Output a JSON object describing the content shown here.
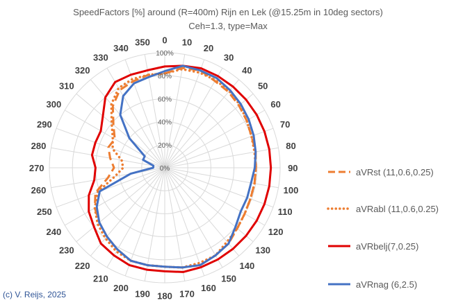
{
  "chart_data": {
    "type": "radar",
    "title": "SpeedFactors [%] around (R=400m) Rijn en Lek (@15.25m in 10deg sectors)",
    "subtitle": "Ceh=1.3, type=Max",
    "directions": [
      "0",
      "10",
      "20",
      "30",
      "40",
      "50",
      "60",
      "70",
      "80",
      "90",
      "100",
      "110",
      "120",
      "130",
      "140",
      "150",
      "160",
      "170",
      "180",
      "190",
      "200",
      "210",
      "220",
      "230",
      "240",
      "250",
      "260",
      "270",
      "280",
      "290",
      "300",
      "310",
      "320",
      "330",
      "340",
      "350"
    ],
    "radial_ticks": [
      "0%",
      "20%",
      "40%",
      "60%",
      "80%",
      "100%"
    ],
    "rlim": [
      0,
      100
    ],
    "series": [
      {
        "name": "aVRst (11,0.6,0.25)",
        "color": "#ed7d31",
        "style": "dashed",
        "values": [
          82,
          88,
          90,
          87,
          86,
          84,
          82,
          80,
          80,
          79,
          79,
          79,
          80,
          82,
          86,
          88,
          90,
          88,
          86,
          86,
          86,
          82,
          78,
          74,
          70,
          64,
          50,
          44,
          48,
          52,
          50,
          58,
          70,
          78,
          80,
          82
        ]
      },
      {
        "name": "aVRabl (11,0.6,0.25)",
        "color": "#ed7d31",
        "style": "dotted",
        "values": [
          82,
          87,
          88,
          88,
          87,
          85,
          82,
          80,
          79,
          79,
          79,
          79,
          80,
          82,
          84,
          88,
          88,
          88,
          86,
          86,
          86,
          84,
          80,
          76,
          70,
          62,
          44,
          36,
          38,
          48,
          52,
          60,
          72,
          80,
          82,
          82
        ]
      },
      {
        "name": "aVRbelj(7,0.25)",
        "color": "#e00000",
        "style": "solid",
        "values": [
          88,
          90,
          92,
          92,
          92,
          92,
          92,
          92,
          92,
          92,
          92,
          92,
          92,
          92,
          92,
          92,
          92,
          92,
          90,
          90,
          90,
          88,
          86,
          80,
          76,
          70,
          62,
          60,
          64,
          64,
          64,
          70,
          80,
          86,
          86,
          86
        ]
      },
      {
        "name": "aVRnag (6,2.5)",
        "color": "#4472c4",
        "style": "solid",
        "values": [
          84,
          90,
          90,
          90,
          88,
          86,
          84,
          82,
          80,
          78,
          76,
          76,
          76,
          80,
          86,
          88,
          90,
          88,
          86,
          86,
          86,
          82,
          78,
          74,
          68,
          60,
          30,
          10,
          10,
          20,
          20,
          40,
          60,
          72,
          78,
          80
        ]
      }
    ]
  },
  "credit": "(c) V. Reijs, 2025"
}
